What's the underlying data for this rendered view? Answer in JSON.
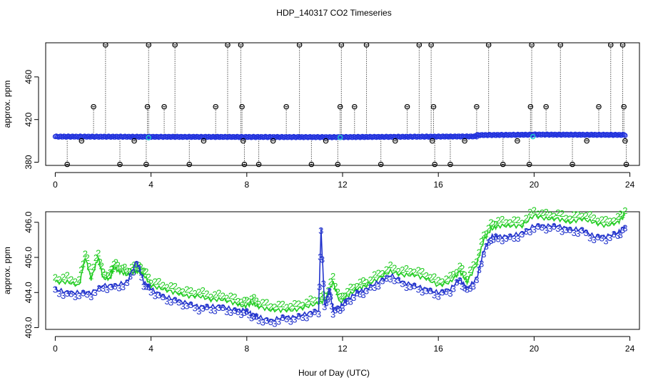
{
  "title": "HDP_140317  CO2 Timeseries",
  "shared_xlabel": "Hour of Day (UTC)",
  "chart_data": [
    {
      "type": "scatter",
      "panel": "top",
      "ylabel": "approx. ppm",
      "xlim": [
        -0.4,
        24.4
      ],
      "ylim": [
        377,
        492
      ],
      "xticks": [
        0,
        4,
        8,
        12,
        16,
        20,
        24
      ],
      "yticks": [
        380,
        420,
        460
      ],
      "dense_series": {
        "color": "#2233dd",
        "segments": [
          {
            "x_start": 0.0,
            "x_end": 11.6,
            "y_start": 404.0,
            "y_end": 403.5
          },
          {
            "x_start": 11.6,
            "x_end": 17.6,
            "y_start": 403.5,
            "y_end": 404.2
          },
          {
            "x_start": 17.6,
            "x_end": 20.0,
            "y_start": 405.4,
            "y_end": 405.8
          },
          {
            "x_start": 20.0,
            "x_end": 23.8,
            "y_start": 405.9,
            "y_end": 405.6
          }
        ],
        "highlight_points": [
          {
            "x": 3.9,
            "y": 403.0,
            "color": "#22cccc"
          },
          {
            "x": 11.9,
            "y": 403.2,
            "color": "#22cccc"
          },
          {
            "x": 19.95,
            "y": 404.0,
            "color": "#22cccc"
          }
        ]
      },
      "outliers": {
        "color": "#000000",
        "x": [
          0.5,
          1.1,
          1.6,
          2.1,
          2.7,
          3.3,
          3.8,
          3.85,
          3.9,
          4.55,
          5.0,
          5.6,
          6.2,
          6.7,
          7.2,
          7.75,
          7.8,
          7.85,
          7.9,
          8.5,
          9.1,
          9.65,
          10.2,
          10.7,
          11.3,
          11.8,
          11.9,
          11.95,
          12.5,
          13.0,
          13.6,
          14.2,
          14.7,
          15.2,
          15.7,
          15.75,
          15.8,
          15.85,
          16.5,
          17.1,
          17.6,
          18.1,
          18.7,
          19.3,
          19.8,
          19.85,
          19.9,
          20.5,
          21.1,
          21.6,
          22.2,
          22.7,
          23.2,
          23.7,
          23.75,
          23.8,
          23.85
        ],
        "y": [
          378,
          400,
          432,
          490,
          378,
          400,
          378,
          432,
          490,
          432,
          490,
          378,
          400,
          432,
          490,
          490,
          432,
          400,
          378,
          378,
          400,
          432,
          490,
          378,
          400,
          378,
          432,
          490,
          432,
          490,
          378,
          400,
          432,
          490,
          490,
          400,
          432,
          378,
          378,
          400,
          432,
          490,
          378,
          400,
          378,
          432,
          490,
          432,
          490,
          378,
          400,
          432,
          490,
          490,
          432,
          400,
          378
        ]
      }
    },
    {
      "type": "line",
      "panel": "bottom",
      "ylabel": "approx. ppm",
      "xlim": [
        -0.4,
        24.4
      ],
      "ylim": [
        402.95,
        406.3
      ],
      "xticks": [
        0,
        4,
        8,
        12,
        16,
        20,
        24
      ],
      "yticks": [
        403.0,
        404.0,
        405.0,
        406.0
      ],
      "ytick_labels": [
        "403.0",
        "404.0",
        "405.0",
        "406.0"
      ],
      "series": [
        {
          "marker": "2",
          "color": "#22cc22",
          "x": [
            0.0,
            0.5,
            1.0,
            1.25,
            1.5,
            1.8,
            2.0,
            2.3,
            2.45,
            2.7,
            3.0,
            3.3,
            3.5,
            3.7,
            4.0,
            4.5,
            5.0,
            5.5,
            6.0,
            6.5,
            7.0,
            7.5,
            7.9,
            8.2,
            8.5,
            9.0,
            9.5,
            10.0,
            10.5,
            11.0,
            11.3,
            11.6,
            11.9,
            12.2,
            12.6,
            13.0,
            13.5,
            14.0,
            14.5,
            15.0,
            15.5,
            16.0,
            16.5,
            16.9,
            17.2,
            17.6,
            17.9,
            18.2,
            18.5,
            19.0,
            19.5,
            20.0,
            20.5,
            21.0,
            21.5,
            22.0,
            22.5,
            23.0,
            23.5,
            23.8
          ],
          "y": [
            404.3,
            404.3,
            404.2,
            405.0,
            404.4,
            405.0,
            404.4,
            404.4,
            404.7,
            404.6,
            404.5,
            404.6,
            404.6,
            404.5,
            404.2,
            404.1,
            404.0,
            403.9,
            403.9,
            403.8,
            403.8,
            403.7,
            403.6,
            403.7,
            403.6,
            403.5,
            403.5,
            403.5,
            403.6,
            403.7,
            403.8,
            404.3,
            403.7,
            403.9,
            404.1,
            404.2,
            404.4,
            404.6,
            404.5,
            404.5,
            404.4,
            404.2,
            404.3,
            404.6,
            404.3,
            404.8,
            405.5,
            405.8,
            405.9,
            405.9,
            405.9,
            406.2,
            406.1,
            406.1,
            406.0,
            406.1,
            406.0,
            405.9,
            406.0,
            406.2
          ]
        },
        {
          "marker": "3",
          "color": "#2233cc",
          "x": [
            0.0,
            0.5,
            1.0,
            1.5,
            2.0,
            2.5,
            3.0,
            3.4,
            3.7,
            4.0,
            4.5,
            5.0,
            5.5,
            6.0,
            6.5,
            7.0,
            7.5,
            7.9,
            8.2,
            8.5,
            9.0,
            9.5,
            10.0,
            10.5,
            11.0,
            11.1,
            11.25,
            11.45,
            11.6,
            11.9,
            12.2,
            12.6,
            13.0,
            13.5,
            14.0,
            14.5,
            15.0,
            15.5,
            16.0,
            16.5,
            16.9,
            17.2,
            17.6,
            17.9,
            18.2,
            18.5,
            19.0,
            19.5,
            20.0,
            20.5,
            21.0,
            21.5,
            22.0,
            22.5,
            23.0,
            23.5,
            23.8
          ],
          "y": [
            404.1,
            404.0,
            404.0,
            404.0,
            404.2,
            404.2,
            404.3,
            404.9,
            404.3,
            404.1,
            403.9,
            403.8,
            403.7,
            403.6,
            403.6,
            403.6,
            403.5,
            403.5,
            403.4,
            403.3,
            403.2,
            403.3,
            403.3,
            403.4,
            403.5,
            405.8,
            403.6,
            404.1,
            403.5,
            403.6,
            403.8,
            404.0,
            404.1,
            404.3,
            404.5,
            404.3,
            404.2,
            404.1,
            404.0,
            404.1,
            404.4,
            404.1,
            404.4,
            405.2,
            405.6,
            405.6,
            405.6,
            405.7,
            405.9,
            405.9,
            405.9,
            405.8,
            405.8,
            405.6,
            405.6,
            405.7,
            405.9
          ]
        }
      ]
    }
  ]
}
